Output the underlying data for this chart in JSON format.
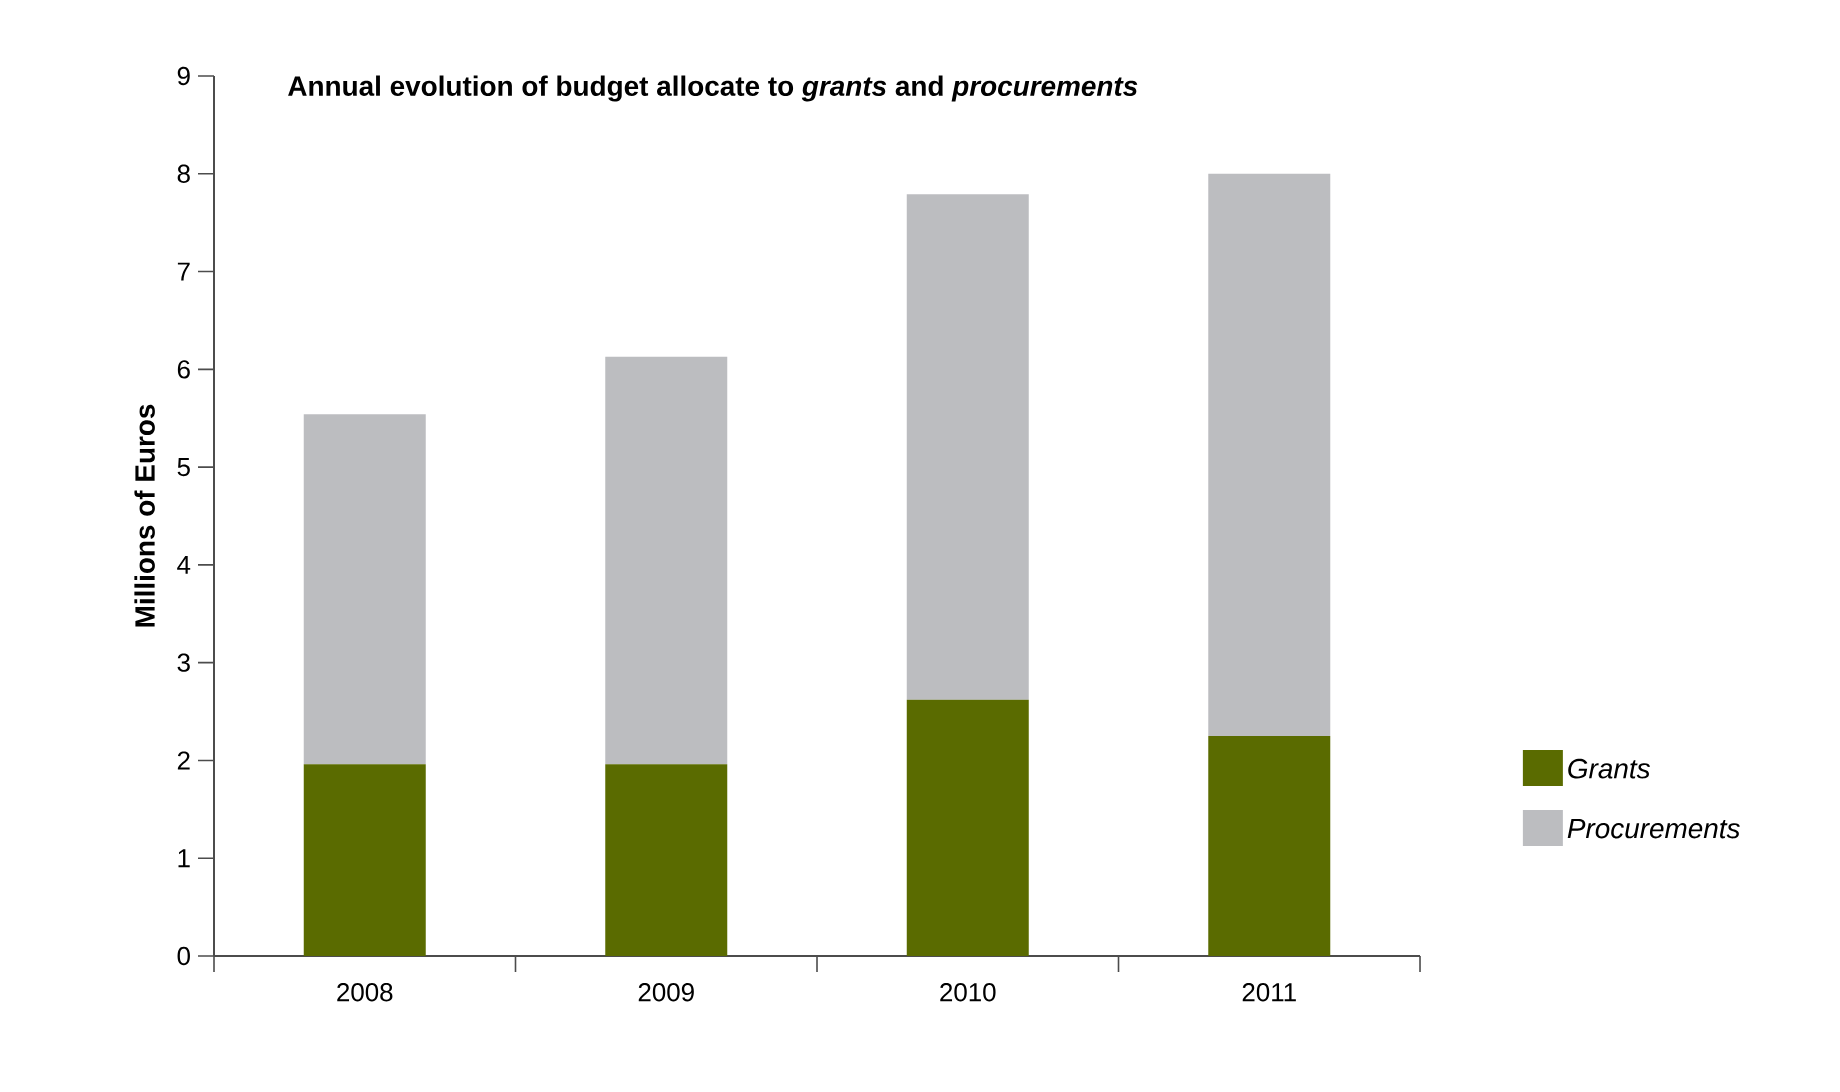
{
  "chart_data": {
    "type": "bar",
    "stacked": true,
    "title": "Annual evolution of budget allocate to *grants* and *procurements*",
    "ylabel": "Millions of Euros",
    "categories": [
      "2008",
      "2009",
      "2010",
      "2011"
    ],
    "series": [
      {
        "name": "Grants",
        "color": "#5a6b00",
        "values": [
          1.96,
          1.96,
          2.62,
          2.25
        ]
      },
      {
        "name": "Procurements",
        "color": "#bcbdc0",
        "values": [
          3.58,
          4.17,
          5.17,
          5.75
        ]
      }
    ],
    "ylim": [
      0,
      9
    ],
    "yticks": [
      0,
      1,
      2,
      3,
      4,
      5,
      6,
      7,
      8,
      9
    ],
    "legend": "right",
    "grid": false
  }
}
